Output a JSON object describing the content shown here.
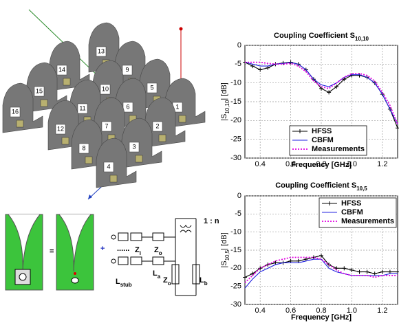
{
  "chart_data": [
    {
      "type": "line",
      "title": "Coupling Coefficient S",
      "title_subscript": "10,10",
      "ylabel": "|S",
      "ylabel_subscript": "10,10",
      "ylabel_suffix": "|   [dB]",
      "xlabel": "Frequency   [GHz]",
      "x": [
        0.3,
        0.35,
        0.4,
        0.45,
        0.5,
        0.55,
        0.6,
        0.65,
        0.7,
        0.75,
        0.8,
        0.85,
        0.9,
        0.95,
        1.0,
        1.05,
        1.1,
        1.15,
        1.2,
        1.25,
        1.3
      ],
      "series": [
        {
          "name": "HFSS",
          "color": "#000000",
          "style": "solid-plus",
          "values": [
            -4.5,
            -5.5,
            -6.5,
            -6,
            -5,
            -4.7,
            -4.5,
            -5,
            -6.5,
            -9,
            -11.5,
            -12.5,
            -11,
            -9,
            -8,
            -8,
            -8.5,
            -10,
            -13,
            -17,
            -22
          ]
        },
        {
          "name": "CBFM",
          "color": "#2020e0",
          "style": "solid",
          "values": [
            -4.5,
            -5,
            -5.5,
            -5.5,
            -5,
            -4.8,
            -4.6,
            -5,
            -6.5,
            -9,
            -10.5,
            -11,
            -10,
            -8.5,
            -7.8,
            -7.8,
            -8.5,
            -10,
            -13,
            -17,
            -21
          ]
        },
        {
          "name": "Measurements",
          "color": "#e000e0",
          "style": "dotted",
          "values": [
            -4.5,
            -4.5,
            -4.5,
            -4.8,
            -5,
            -5,
            -4.8,
            -5.5,
            -7,
            -9.5,
            -11,
            -11.5,
            -10,
            -8.5,
            -7.5,
            -7.5,
            -8,
            -9.5,
            -12.5,
            -16,
            -21
          ]
        }
      ],
      "xlim": [
        0.3,
        1.3
      ],
      "xticks": [
        0.4,
        0.6,
        0.8,
        {
          "value": 1,
          "label": "1.0"
        },
        1.2
      ],
      "ylim": [
        -30,
        0
      ],
      "yticks": [
        -30,
        -25,
        -20,
        -15,
        -10,
        -5,
        0
      ],
      "grid": true,
      "legend": "bottom"
    },
    {
      "type": "line",
      "title": "Coupling Coefficient S",
      "title_subscript": "10,5",
      "ylabel": "|S",
      "ylabel_subscript": "10,5",
      "ylabel_suffix": "|   [dB]",
      "xlabel": "Frequency   [GHz]",
      "x": [
        0.3,
        0.35,
        0.4,
        0.45,
        0.5,
        0.55,
        0.6,
        0.65,
        0.7,
        0.75,
        0.8,
        0.85,
        0.9,
        0.95,
        1.0,
        1.05,
        1.1,
        1.15,
        1.2,
        1.25,
        1.3
      ],
      "series": [
        {
          "name": "HFSS",
          "color": "#000000",
          "style": "solid-plus",
          "values": [
            -22.5,
            -21.5,
            -20,
            -19,
            -18.5,
            -18.5,
            -18,
            -18,
            -17.5,
            -17,
            -16.5,
            -19,
            -20,
            -20,
            -20.5,
            -21,
            -21,
            -21.5,
            -21,
            -21,
            -21
          ]
        },
        {
          "name": "CBFM",
          "color": "#2020e0",
          "style": "solid",
          "values": [
            -25.5,
            -23,
            -21,
            -20,
            -19,
            -18.5,
            -18.5,
            -18.5,
            -18,
            -17.5,
            -17.5,
            -20,
            -21,
            -21.5,
            -22,
            -22,
            -22,
            -22,
            -22,
            -21.5,
            -21.5
          ]
        },
        {
          "name": "Measurements",
          "color": "#e000e0",
          "style": "dotted",
          "values": [
            -24,
            -22,
            -20,
            -19,
            -18,
            -17.5,
            -17,
            -17,
            -17,
            -17,
            -17.5,
            -19,
            -20.5,
            -21.5,
            -22,
            -22,
            -22,
            -22.5,
            -22,
            -22,
            -22
          ]
        }
      ],
      "xlim": [
        0.3,
        1.3
      ],
      "xticks": [
        0.4,
        0.6,
        0.8,
        {
          "value": 1,
          "label": "1.0"
        },
        1.2
      ],
      "ylim": [
        -30,
        0
      ],
      "yticks": [
        -30,
        -25,
        -20,
        -15,
        -10,
        -5,
        0
      ],
      "grid": true,
      "legend": "top-right"
    }
  ],
  "diagram": {
    "fins": [
      "13",
      "14",
      "9",
      "15",
      "10",
      "5",
      "16",
      "11",
      "6",
      "1",
      "12",
      "7",
      "2",
      "8",
      "3",
      "4"
    ],
    "equals": "=",
    "plus": "+",
    "dots": "......",
    "ratio": "1 : n",
    "circuit": [
      {
        "text": "Z",
        "sub": "i"
      },
      {
        "text": "Z",
        "sub": "o"
      },
      {
        "text": "L",
        "sub": "stub"
      },
      {
        "text": "L",
        "sub": "a"
      },
      {
        "text": "Z",
        "sub": "o"
      },
      {
        "text": "L",
        "sub": "b"
      }
    ]
  }
}
